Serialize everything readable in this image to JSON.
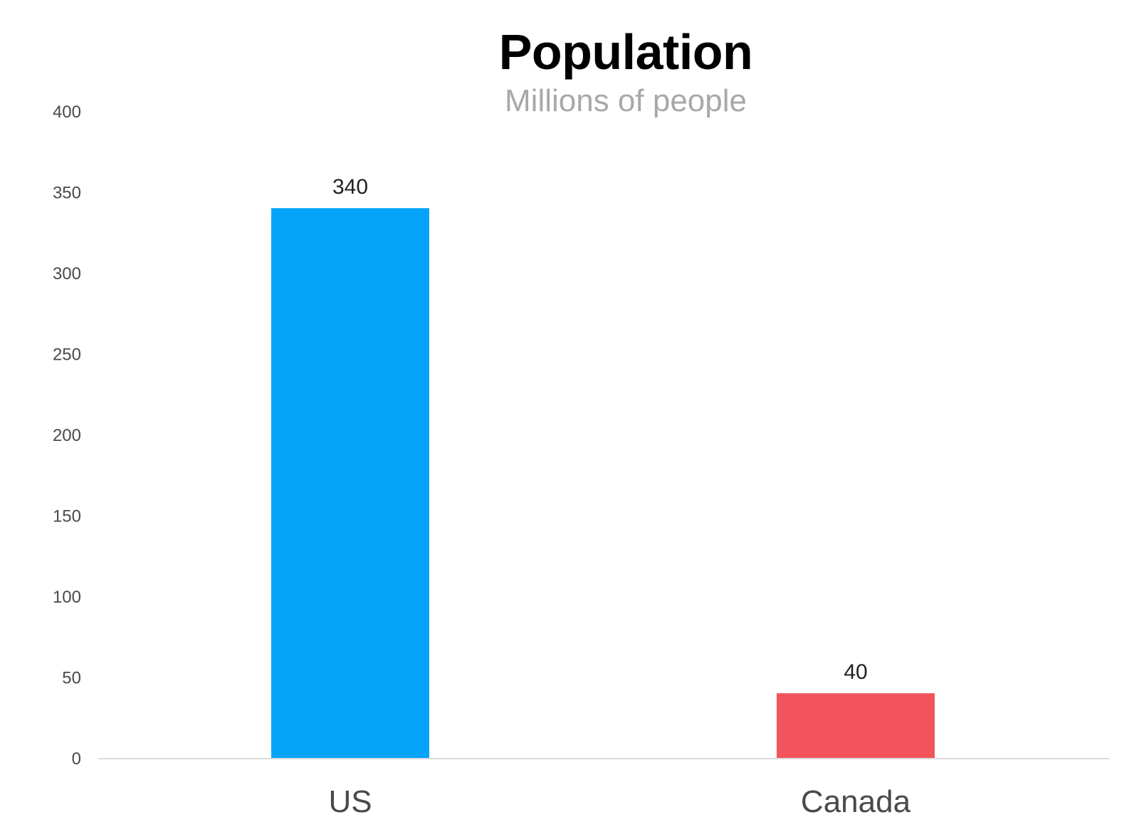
{
  "chart_data": {
    "type": "bar",
    "title": "Population",
    "subtitle": "Millions of people",
    "categories": [
      "US",
      "Canada"
    ],
    "values": [
      340,
      40
    ],
    "data_labels": [
      "340",
      "40"
    ],
    "colors": [
      "#06a4f9",
      "#f1545d"
    ],
    "ylim": [
      0,
      400
    ],
    "yticks": [
      0,
      50,
      100,
      150,
      200,
      250,
      300,
      350,
      400
    ],
    "ytick_labels": [
      "0",
      "50",
      "100",
      "150",
      "200",
      "250",
      "300",
      "350",
      "400"
    ],
    "grid": false,
    "legend": "none"
  }
}
